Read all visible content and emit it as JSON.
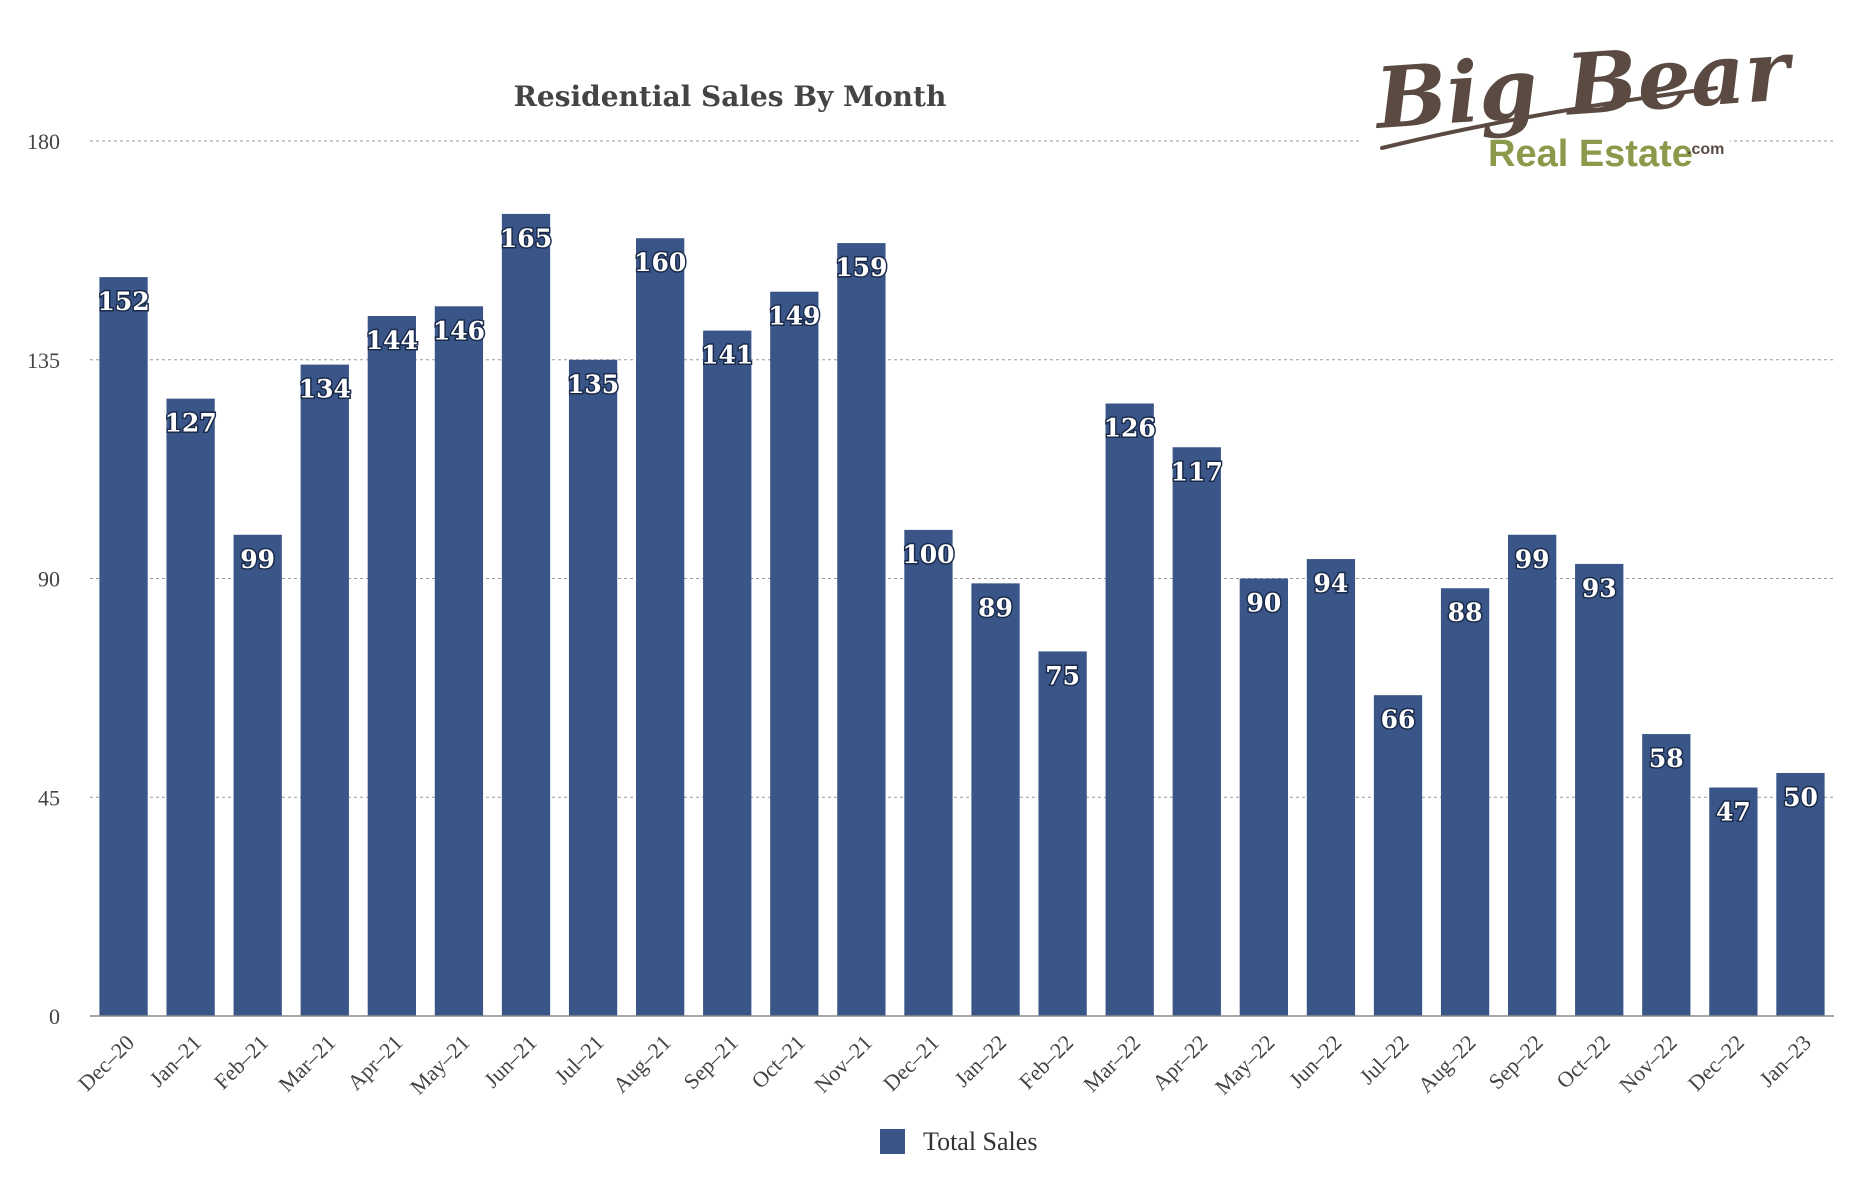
{
  "logo": {
    "script": "Big Bear",
    "sub": "Real Estate",
    "suffix": ".com"
  },
  "chart_data": {
    "type": "bar",
    "title": "Residential Sales By Month",
    "xlabel": "",
    "ylabel": "",
    "ylim": [
      0,
      180
    ],
    "yticks": [
      0,
      45,
      90,
      135,
      180
    ],
    "grid": true,
    "legend_position": "bottom",
    "categories": [
      "Dec–20",
      "Jan–21",
      "Feb–21",
      "Mar–21",
      "Apr–21",
      "May–21",
      "Jun–21",
      "Jul–21",
      "Aug–21",
      "Sep–21",
      "Oct–21",
      "Nov–21",
      "Dec–21",
      "Jan–22",
      "Feb–22",
      "Mar–22",
      "Apr–22",
      "May–22",
      "Jun–22",
      "Jul–22",
      "Aug–22",
      "Sep–22",
      "Oct–22",
      "Nov–22",
      "Dec–22",
      "Jan–23"
    ],
    "series": [
      {
        "name": "Total Sales",
        "color": "#3a5688",
        "values": [
          152,
          127,
          99,
          134,
          144,
          146,
          165,
          135,
          160,
          141,
          149,
          159,
          100,
          89,
          75,
          126,
          117,
          90,
          94,
          66,
          88,
          99,
          93,
          58,
          47,
          50
        ]
      }
    ]
  }
}
